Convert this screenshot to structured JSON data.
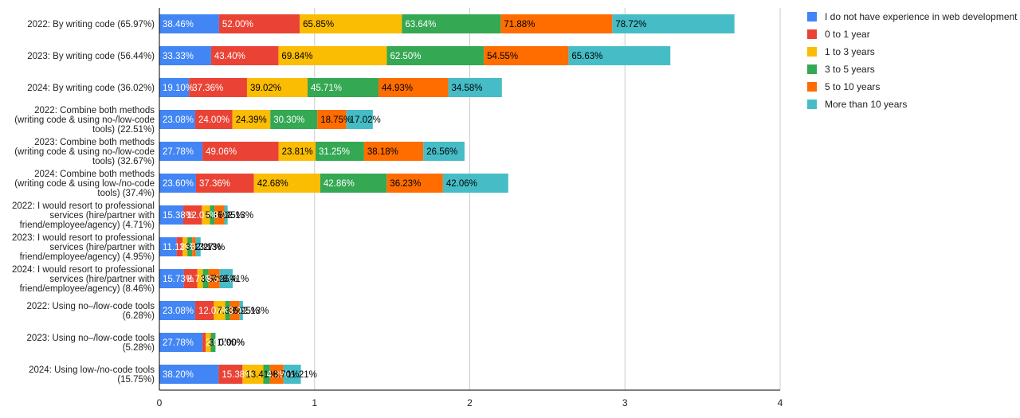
{
  "colors": {
    "background": "#ffffff",
    "gridline": "#cccccc",
    "axis": "#000000",
    "text": "#222222"
  },
  "chart_data": {
    "type": "bar",
    "orientation": "horizontal",
    "stacked": true,
    "title": "",
    "xlabel": "",
    "ylabel": "",
    "xlim": [
      0,
      4
    ],
    "x_ticks": [
      0,
      1,
      2,
      3,
      4
    ],
    "grid": true,
    "legend_position": "right",
    "categories": [
      "2022: By writing code (65.97%)",
      "2023: By writing code (56.44%)",
      "2024: By writing code (36.02%)",
      "2022: Combine both methods (writing code & using no-/low-code tools) (22.51%)",
      "2023: Combine both methods (writing code & using no-/low-code tools) (32.67%)",
      "2024: Combine both methods (writing code & using low-/no-code tools) (37.4%)",
      "2022: I would resort to professional services (hire/partner with friend/employee/agency) (4.71%)",
      "2023: I would resort to professional services (hire/partner with friend/employee/agency) (4.95%)",
      "2024: I would resort to professional services (hire/partner with friend/employee/agency) (8.46%)",
      "2022: Using no–/low-code tools (6.28%)",
      "2023: Using no–/low-code tools (5.28%)",
      "2024: Using low-/no-code tools (15.75%)"
    ],
    "category_lines": [
      [
        "2022: By writing code (65.97%)"
      ],
      [
        "2023: By writing code (56.44%)"
      ],
      [
        "2024: By writing code (36.02%)"
      ],
      [
        "2022: Combine both methods",
        "(writing code & using no-/low-code",
        "tools) (22.51%)"
      ],
      [
        "2023: Combine both methods",
        "(writing code & using no-/low-code",
        "tools) (32.67%)"
      ],
      [
        "2024: Combine both methods",
        "(writing code & using low-/no-code",
        "tools) (37.4%)"
      ],
      [
        "2022: I would resort to professional",
        "services (hire/partner with",
        "friend/employee/agency) (4.71%)"
      ],
      [
        "2023: I would resort to professional",
        "services (hire/partner with",
        "friend/employee/agency) (4.95%)"
      ],
      [
        "2024: I would resort to professional",
        "services (hire/partner with",
        "friend/employee/agency) (8.46%)"
      ],
      [
        "2022: Using no–/low-code tools",
        "(6.28%)"
      ],
      [
        "2023: Using no–/low-code tools",
        "(5.28%)"
      ],
      [
        "2024: Using low-/no-code tools",
        "(15.75%)"
      ]
    ],
    "series": [
      {
        "name": "I do not have experience in web development",
        "color": "#4285f4",
        "label_color": "#ffffff",
        "values": [
          0.3846,
          0.3333,
          0.191,
          0.2308,
          0.2778,
          0.236,
          0.1538,
          0.1111,
          0.1573,
          0.2308,
          0.2778,
          0.382
        ],
        "labels": [
          "38.46%",
          "33.33%",
          "19.10%",
          "23.08%",
          "27.78%",
          "23.60%",
          "15.38%",
          "11.11%",
          "15.73%",
          "23.08%",
          "27.78%",
          "38.20%"
        ]
      },
      {
        "name": "0 to 1 year",
        "color": "#ea4335",
        "label_color": "#ffffff",
        "values": [
          0.52,
          0.434,
          0.3736,
          0.24,
          0.4906,
          0.3736,
          0.1203,
          0.0377,
          0.0873,
          0.1203,
          0.0208,
          0.1538
        ],
        "labels": [
          "52.00%",
          "43.40%",
          "37.36%",
          "24.00%",
          "49.06%",
          "37.36%",
          "12.03%",
          "3.77%",
          "8.73%",
          "12.03%",
          "2.08%",
          "15.38%"
        ]
      },
      {
        "name": "1 to 3 years",
        "color": "#fbbc04",
        "label_color": "#000000",
        "values": [
          0.6585,
          0.6984,
          0.3902,
          0.2439,
          0.2381,
          0.4268,
          0.0517,
          0.0317,
          0.0357,
          0.0733,
          0.0317,
          0.1341
        ],
        "labels": [
          "65.85%",
          "69.84%",
          "39.02%",
          "24.39%",
          "23.81%",
          "42.68%",
          "5.17%",
          "3.17%",
          "3.57%",
          "7.33%",
          "3.17%",
          "13.41%"
        ]
      },
      {
        "name": "3 to 5 years",
        "color": "#34a853",
        "label_color": "#ffffff",
        "values": [
          0.6364,
          0.625,
          0.4571,
          0.303,
          0.3125,
          0.4286,
          0.0303,
          0.0313,
          0.0357,
          0.0303,
          0.0313,
          0.0429
        ],
        "labels": [
          "63.64%",
          "62.50%",
          "45.71%",
          "30.30%",
          "31.25%",
          "42.86%",
          "3.03%",
          "3.13%",
          "3.57%",
          "3.03%",
          "3.13%",
          "4.29%"
        ]
      },
      {
        "name": "5 to 10 years",
        "color": "#ff6d01",
        "label_color": "#000000",
        "values": [
          0.7188,
          0.5455,
          0.4493,
          0.1875,
          0.3818,
          0.3623,
          0.0625,
          0.0227,
          0.0725,
          0.0625,
          0.0,
          0.087
        ],
        "labels": [
          "71.88%",
          "54.55%",
          "44.93%",
          "18.75%",
          "38.18%",
          "36.23%",
          "6.25%",
          "2.27%",
          "7.25%",
          "6.25%",
          "0.00%",
          "8.70%"
        ]
      },
      {
        "name": "More than 10 years",
        "color": "#46bdc6",
        "label_color": "#000000",
        "values": [
          0.7872,
          0.6563,
          0.3458,
          0.1702,
          0.2656,
          0.4206,
          0.0213,
          0.0313,
          0.0841,
          0.0213,
          0.0,
          0.1121
        ],
        "labels": [
          "78.72%",
          "65.63%",
          "34.58%",
          "17.02%",
          "26.56%",
          "42.06%",
          "2.13%",
          "3.13%",
          "8.41%",
          "2.13%",
          "0.00%",
          "11.21%"
        ]
      }
    ]
  }
}
